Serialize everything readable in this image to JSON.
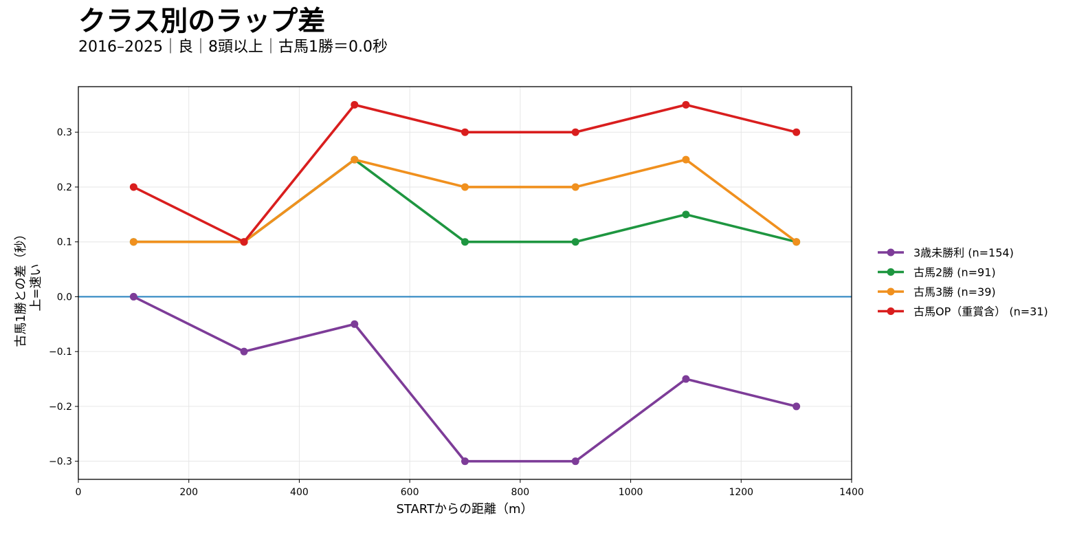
{
  "title": "クラス別のラップ差",
  "subtitle": "2016–2025｜良｜8頭以上｜古馬1勝＝0.0秒",
  "chart_data": {
    "type": "line",
    "xlabel": "STARTからの距離（m）",
    "ylabel_line1": "古馬1勝との差（秒）",
    "ylabel_line2": "上=速い",
    "xlim": [
      0,
      1400
    ],
    "ylim": [
      -0.333,
      0.383
    ],
    "xticks": [
      0,
      200,
      400,
      600,
      800,
      1000,
      1200,
      1400
    ],
    "xtick_labels": [
      "0",
      "200",
      "400",
      "600",
      "800",
      "1000",
      "1200",
      "1400"
    ],
    "yticks": [
      -0.3,
      -0.2,
      -0.1,
      0.0,
      0.1,
      0.2,
      0.3
    ],
    "ytick_labels": [
      "−0.3",
      "−0.2",
      "−0.1",
      "0.0",
      "0.1",
      "0.2",
      "0.3"
    ],
    "grid": true,
    "baseline": {
      "y": 0.0,
      "color": "#2e86c1"
    },
    "legend_position": "right",
    "x": [
      100,
      300,
      500,
      700,
      900,
      1100,
      1300
    ],
    "series": [
      {
        "name": "3歳未勝利 (n=154)",
        "color": "#7d3c98",
        "values": [
          0.0,
          -0.1,
          -0.05,
          -0.3,
          -0.3,
          -0.15,
          -0.2
        ]
      },
      {
        "name": "古馬2勝 (n=91)",
        "color": "#1e9640",
        "values": [
          0.1,
          0.1,
          0.25,
          0.1,
          0.1,
          0.15,
          0.1
        ]
      },
      {
        "name": "古馬3勝 (n=39)",
        "color": "#f0901e",
        "values": [
          0.1,
          0.1,
          0.25,
          0.2,
          0.2,
          0.25,
          0.1
        ]
      },
      {
        "name": "古馬OP（重賞含） (n=31)",
        "color": "#d91e1e",
        "values": [
          0.2,
          0.1,
          0.35,
          0.3,
          0.3,
          0.35,
          0.3
        ]
      }
    ]
  }
}
